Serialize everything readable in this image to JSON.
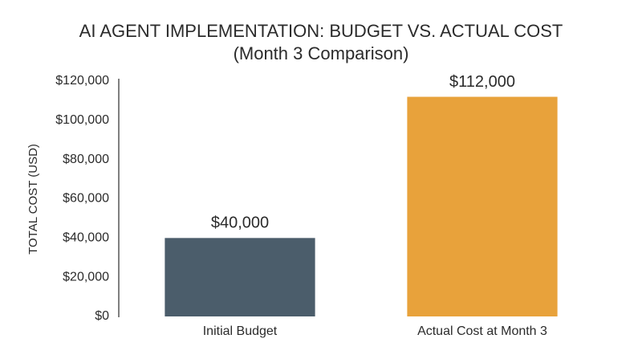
{
  "chart_data": {
    "type": "bar",
    "title": "AI AGENT IMPLEMENTATION: BUDGET VS. ACTUAL COST",
    "subtitle": "(Month 3 Comparison)",
    "y_label": "TOTAL COST (USD)",
    "categories": [
      "Initial Budget",
      "Actual Cost at Month 3"
    ],
    "values": [
      40000,
      112000
    ],
    "value_labels": [
      "$40,000",
      "$112,000"
    ],
    "colors": [
      "#4b5d6b",
      "#e8a23b"
    ],
    "ylim": [
      0,
      120000
    ],
    "yticks": [
      {
        "value": 0,
        "label": "$0"
      },
      {
        "value": 20000,
        "label": "$20,000"
      },
      {
        "value": 40000,
        "label": "$40,000"
      },
      {
        "value": 60000,
        "label": "$60,000"
      },
      {
        "value": 80000,
        "label": "$80,000"
      },
      {
        "value": 100000,
        "label": "$100,000"
      },
      {
        "value": 120000,
        "label": "$120,000"
      }
    ],
    "grid": false
  }
}
